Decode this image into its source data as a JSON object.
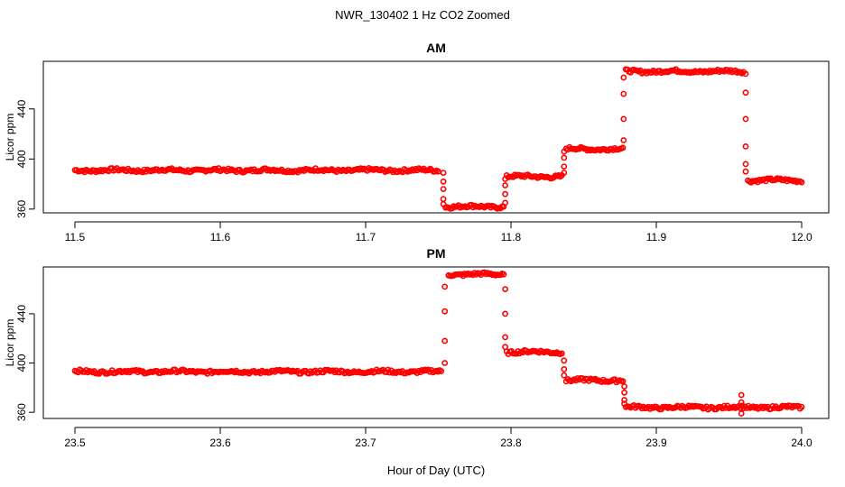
{
  "figure": {
    "title": "NWR_130402  1 Hz CO2 Zoomed",
    "xlabel": "Hour of Day (UTC)"
  },
  "colors": {
    "points": "#ff0000",
    "axes": "#000000"
  },
  "chart_data": [
    {
      "type": "scatter",
      "title": "AM",
      "xlabel": "",
      "ylabel": "Licor ppm",
      "xlim": [
        11.5,
        12.0
      ],
      "ylim": [
        357,
        478
      ],
      "xticks": [
        "11.5",
        "11.6",
        "11.7",
        "11.8",
        "11.9",
        "12.0"
      ],
      "yticks": [
        "360",
        "400",
        "440"
      ],
      "marker": "open-circle",
      "plateaus": [
        {
          "x": [
            11.5,
            11.75
          ],
          "y": 391
        },
        {
          "x": [
            11.755,
            11.795
          ],
          "y": 362
        },
        {
          "x": [
            11.797,
            11.835
          ],
          "y": 386
        },
        {
          "x": [
            11.838,
            11.877
          ],
          "y": 408
        },
        {
          "x": [
            11.879,
            11.96
          ],
          "y": 470
        },
        {
          "x": [
            11.963,
            12.0
          ],
          "y": 383
        }
      ],
      "transitions": [
        {
          "x": 11.7535,
          "y": [
            389,
            382,
            376,
            368,
            364
          ]
        },
        {
          "x": 11.796,
          "y": [
            365,
            372,
            379,
            384
          ]
        },
        {
          "x": 11.8365,
          "y": [
            389,
            394,
            401,
            406
          ]
        },
        {
          "x": 11.8775,
          "y": [
            415,
            432,
            452,
            465
          ]
        },
        {
          "x": 11.9615,
          "y": [
            468,
            453,
            432,
            410,
            396,
            390
          ]
        }
      ]
    },
    {
      "type": "scatter",
      "title": "PM",
      "xlabel": "",
      "ylabel": "Licor ppm",
      "xlim": [
        23.5,
        24.0
      ],
      "ylim": [
        355,
        478
      ],
      "xticks": [
        "23.5",
        "23.6",
        "23.7",
        "23.8",
        "23.9",
        "24.0"
      ],
      "yticks": [
        "360",
        "400",
        "440"
      ],
      "marker": "open-circle",
      "plateaus": [
        {
          "x": [
            23.5,
            23.752
          ],
          "y": 393
        },
        {
          "x": [
            23.757,
            23.795
          ],
          "y": 472
        },
        {
          "x": [
            23.797,
            23.835
          ],
          "y": 409
        },
        {
          "x": [
            23.838,
            23.877
          ],
          "y": 386
        },
        {
          "x": [
            23.879,
            24.0
          ],
          "y": 364
        }
      ],
      "transitions": [
        {
          "x": 23.7545,
          "y": [
            400,
            418,
            442,
            462
          ]
        },
        {
          "x": 23.796,
          "y": [
            460,
            440,
            421,
            413
          ]
        },
        {
          "x": 23.8365,
          "y": [
            402,
            395,
            390
          ]
        },
        {
          "x": 23.878,
          "y": [
            381,
            376,
            370,
            367
          ]
        },
        {
          "x": 23.9585,
          "y": [
            374,
            368,
            359
          ]
        }
      ]
    }
  ]
}
